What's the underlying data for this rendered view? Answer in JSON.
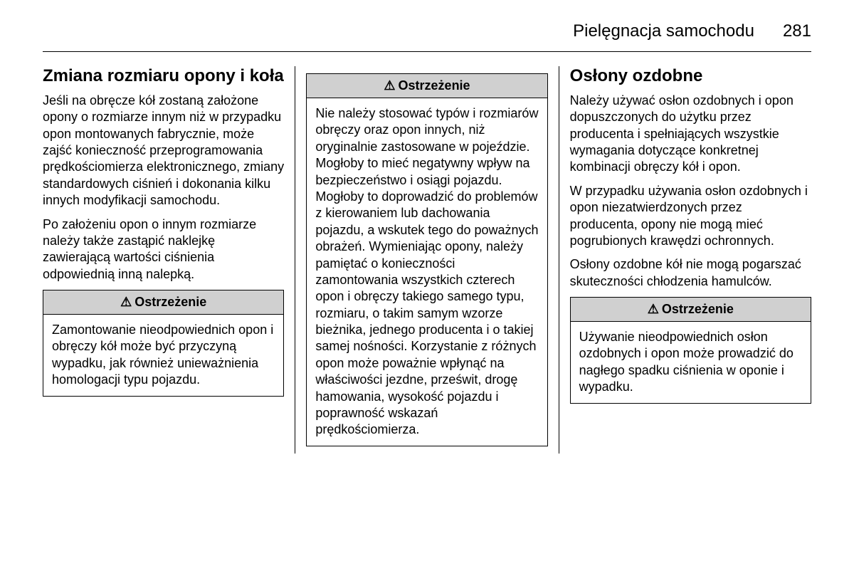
{
  "header": {
    "title": "Pielęgnacja samochodu",
    "page_number": "281"
  },
  "column1": {
    "heading": "Zmiana rozmiaru opony i koła",
    "p1": "Jeśli na obręcze kół zostaną założone opony o rozmiarze innym niż w przypadku opon montowanych fabrycznie, może zajść konieczność przeprogramowania prędkościomierza elektronicznego, zmiany standardowych ciśnień i dokonania kilku innych modyfikacji samochodu.",
    "p2": "Po założeniu opon o innym rozmiarze należy także zastąpić naklejkę zawierającą wartości ciśnienia odpowiednią inną nalepką.",
    "warning": {
      "title": "Ostrzeżenie",
      "body": "Zamontowanie nieodpowiednich opon i obręczy kół może być przyczyną wypadku, jak również unieważnienia homologacji typu pojazdu."
    }
  },
  "column2": {
    "warning": {
      "title": "Ostrzeżenie",
      "body": "Nie należy stosować typów i rozmiarów obręczy oraz opon innych, niż oryginalnie zastosowane w pojeździe. Mogłoby to mieć negatywny wpływ na bezpieczeństwo i osiągi pojazdu. Mogłoby to doprowadzić do problemów z kierowaniem lub dachowania pojazdu, a wskutek tego do poważnych obrażeń. Wymieniając opony, należy pamiętać o konieczności zamontowania wszystkich czterech opon i obręczy takiego samego typu, rozmiaru, o takim samym wzorze bieżnika, jednego producenta i o takiej samej nośności. Korzystanie z różnych opon może poważnie wpłynąć na właściwości jezdne, prześwit, drogę hamowania, wysokość pojazdu i poprawność wskazań prędkościomierza."
    }
  },
  "column3": {
    "heading": "Osłony ozdobne",
    "p1": "Należy używać osłon ozdobnych i opon dopuszczonych do użytku przez producenta i spełniających wszystkie wymagania dotyczące konkretnej kombinacji obręczy kół i opon.",
    "p2": "W przypadku używania osłon ozdobnych i opon niezatwierdzonych przez producenta, opony nie mogą mieć pogrubionych krawędzi ochronnych.",
    "p3": "Osłony ozdobne kół nie mogą pogarszać skuteczności chłodzenia hamulców.",
    "warning": {
      "title": "Ostrzeżenie",
      "body": "Używanie nieodpowiednich osłon ozdobnych i opon może prowadzić do nagłego spadku ciśnienia w oponie i wypadku."
    }
  },
  "colors": {
    "background": "#ffffff",
    "text": "#000000",
    "border": "#000000",
    "warning_header_bg": "#d0d0d0"
  },
  "typography": {
    "header_fontsize": 24,
    "heading_fontsize": 24,
    "body_fontsize": 18,
    "warning_title_fontsize": 18
  }
}
